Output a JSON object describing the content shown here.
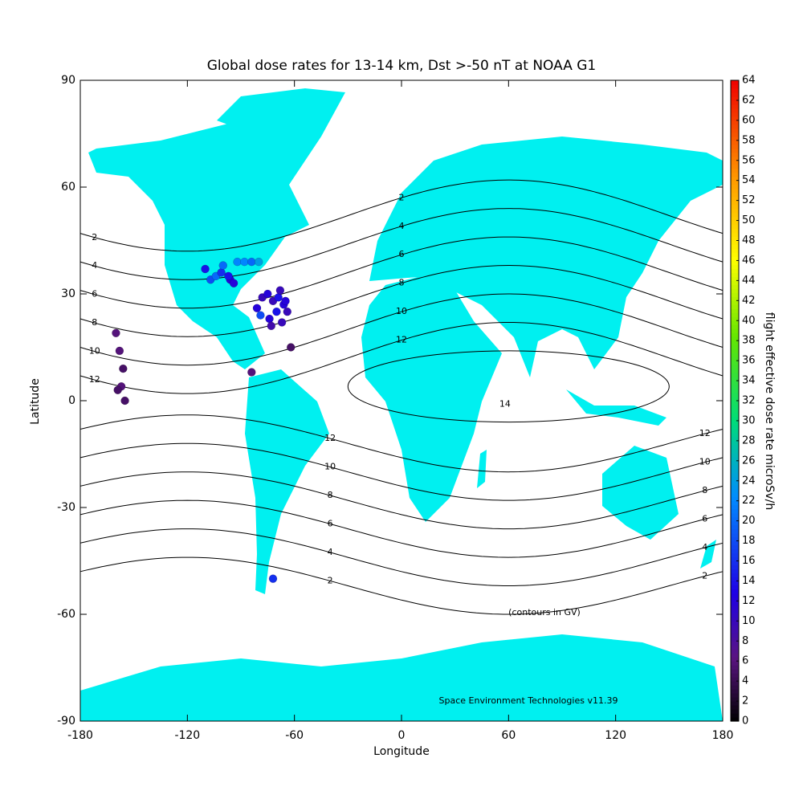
{
  "chart_data": {
    "type": "map",
    "title": "Global dose rates for 13-14 km, Dst >-50 nT at NOAA G1",
    "xlabel": "Longitude",
    "ylabel": "Latitude",
    "xlim": [
      -180,
      180
    ],
    "ylim": [
      -90,
      90
    ],
    "xticks": [
      -180,
      -120,
      -60,
      0,
      60,
      120,
      180
    ],
    "yticks": [
      -90,
      -60,
      -30,
      0,
      30,
      60,
      90
    ],
    "colorbar": {
      "label": "flight effective dose rate microSv/h",
      "lim": [
        0,
        64
      ],
      "ticks": [
        0,
        2,
        4,
        6,
        8,
        10,
        12,
        14,
        16,
        18,
        20,
        22,
        24,
        26,
        28,
        30,
        32,
        34,
        36,
        38,
        40,
        42,
        44,
        46,
        48,
        50,
        52,
        54,
        56,
        58,
        60,
        62,
        64
      ]
    },
    "contours": {
      "levels": [
        2,
        4,
        6,
        8,
        10,
        12,
        14
      ]
    },
    "annotations": [
      "(contours in GV)",
      "Space Environment Technologies v11.39"
    ],
    "points": {
      "lon": [
        -110,
        -107,
        -104,
        -101,
        -96,
        -92,
        -88,
        -84,
        -80,
        -100,
        -97,
        -94,
        -81,
        -78,
        -75,
        -72,
        -69,
        -66,
        -64,
        -79,
        -74,
        -70,
        -67,
        -65,
        -73,
        -68,
        -160,
        -158,
        -156,
        -157,
        -159,
        -155,
        -84,
        -62,
        -72
      ],
      "lat": [
        37,
        34,
        35,
        36,
        34,
        39,
        39,
        39,
        39,
        38,
        35,
        33,
        26,
        29,
        30,
        28,
        29,
        27,
        25,
        24,
        23,
        25,
        22,
        28,
        21,
        31,
        19,
        14,
        9,
        4,
        3,
        0,
        8,
        15,
        -50
      ],
      "dose": [
        14,
        18,
        20,
        16,
        12,
        22,
        22,
        20,
        24,
        20,
        14,
        12,
        12,
        10,
        12,
        10,
        14,
        12,
        10,
        18,
        12,
        14,
        10,
        12,
        9,
        10,
        6,
        6,
        5,
        6,
        5,
        5,
        6,
        5,
        16
      ]
    }
  }
}
